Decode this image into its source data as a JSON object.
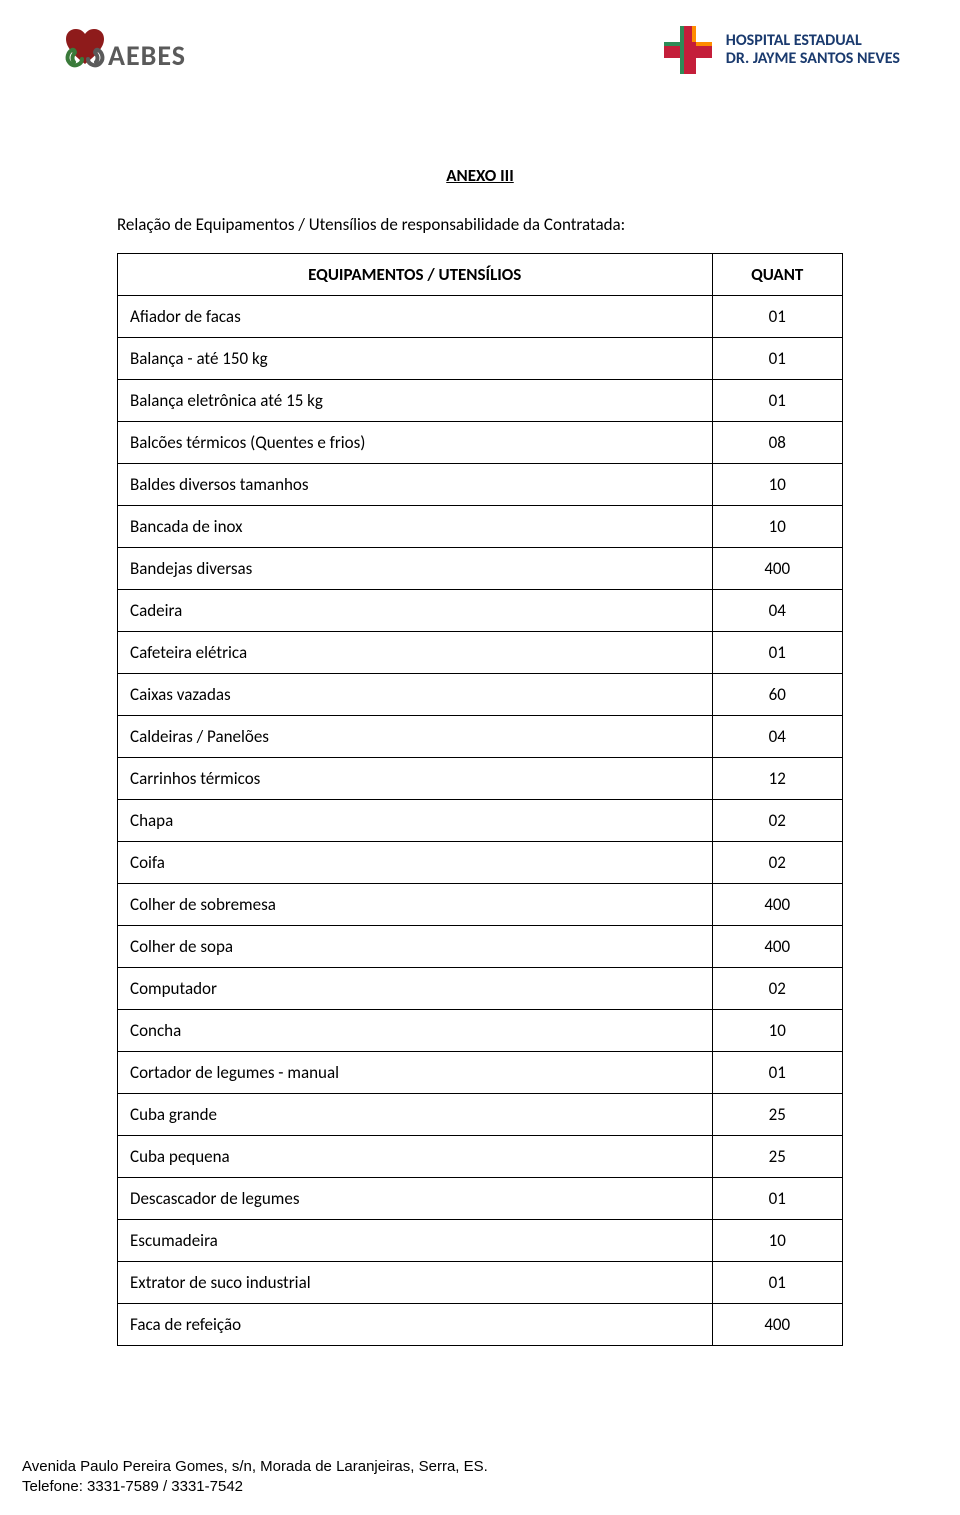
{
  "logos": {
    "left_text": "AEBES",
    "right_line1": "HOSPITAL ESTADUAL",
    "right_line2": "DR. JAYME SANTOS NEVES",
    "colors": {
      "heart_red": "#8e1b1b",
      "heart_green": "#3a7a3a",
      "aebes_text": "#5a5a5a",
      "cross_red": "#c41e3a",
      "cross_green": "#2e8b57",
      "cross_orange": "#ff8c00",
      "hospital_text": "#1a3a6e"
    }
  },
  "title": "ANEXO III",
  "subtitle": "Relação de Equipamentos / Utensílios de responsabilidade da Contratada:",
  "table": {
    "header_equip": "EQUIPAMENTOS / UTENSÍLIOS",
    "header_quant": "QUANT",
    "rows": [
      {
        "equip": "Afiador de facas",
        "quant": "01"
      },
      {
        "equip": "Balança  - até 150 kg",
        "quant": "01"
      },
      {
        "equip": "Balança eletrônica até 15 kg",
        "quant": "01"
      },
      {
        "equip": "Balcões térmicos (Quentes e frios)",
        "quant": "08"
      },
      {
        "equip": "Baldes diversos tamanhos",
        "quant": "10"
      },
      {
        "equip": "Bancada de inox",
        "quant": "10"
      },
      {
        "equip": "Bandejas diversas",
        "quant": "400"
      },
      {
        "equip": "Cadeira",
        "quant": "04"
      },
      {
        "equip": "Cafeteira elétrica",
        "quant": "01"
      },
      {
        "equip": "Caixas vazadas",
        "quant": "60"
      },
      {
        "equip": "Caldeiras / Panelões",
        "quant": "04"
      },
      {
        "equip": "Carrinhos térmicos",
        "quant": "12"
      },
      {
        "equip": "Chapa",
        "quant": "02"
      },
      {
        "equip": "Coifa",
        "quant": "02"
      },
      {
        "equip": "Colher de sobremesa",
        "quant": "400"
      },
      {
        "equip": "Colher de sopa",
        "quant": "400"
      },
      {
        "equip": "Computador",
        "quant": "02"
      },
      {
        "equip": "Concha",
        "quant": "10"
      },
      {
        "equip": "Cortador de legumes - manual",
        "quant": "01"
      },
      {
        "equip": "Cuba grande",
        "quant": "25"
      },
      {
        "equip": "Cuba pequena",
        "quant": "25"
      },
      {
        "equip": "Descascador de legumes",
        "quant": "01"
      },
      {
        "equip": "Escumadeira",
        "quant": "10"
      },
      {
        "equip": "Extrator de suco industrial",
        "quant": "01"
      },
      {
        "equip": "Faca de refeição",
        "quant": "400"
      }
    ]
  },
  "footer": {
    "line1": "Avenida Paulo Pereira Gomes, s/n, Morada de Laranjeiras, Serra, ES.",
    "line2": "Telefone: 3331-7589 / 3331-7542"
  }
}
